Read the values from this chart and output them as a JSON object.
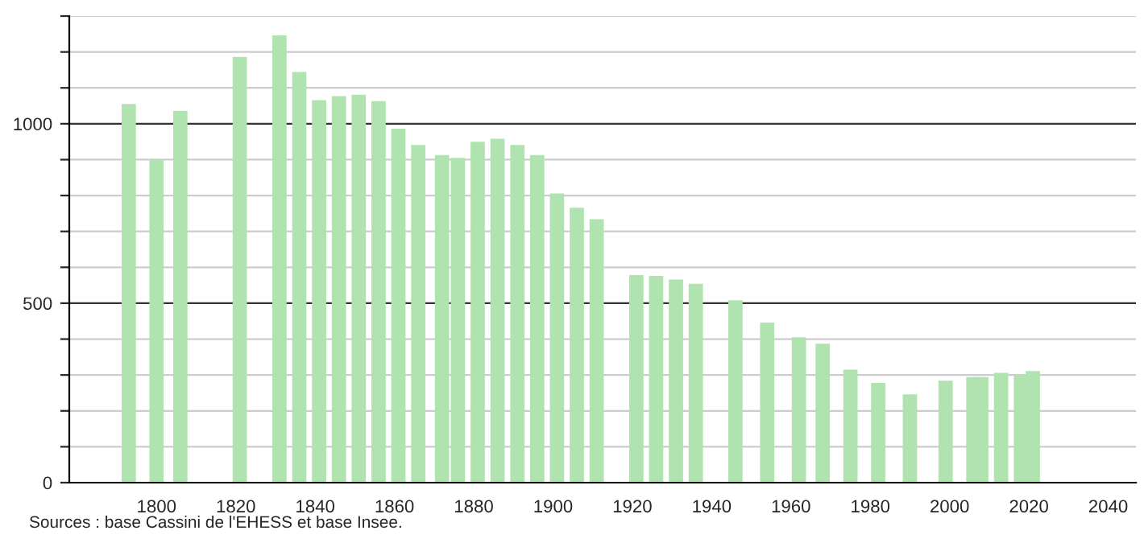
{
  "chart_data": {
    "type": "bar",
    "x": [
      1793,
      1800,
      1806,
      1821,
      1831,
      1836,
      1841,
      1846,
      1851,
      1856,
      1861,
      1866,
      1872,
      1876,
      1881,
      1886,
      1891,
      1896,
      1901,
      1906,
      1911,
      1921,
      1926,
      1931,
      1936,
      1946,
      1954,
      1962,
      1968,
      1975,
      1982,
      1990,
      1999,
      2006,
      2008,
      2013,
      2018,
      2021
    ],
    "values": [
      1055,
      900,
      1036,
      1186,
      1246,
      1144,
      1066,
      1077,
      1081,
      1063,
      986,
      941,
      913,
      905,
      950,
      958,
      941,
      913,
      806,
      766,
      734,
      578,
      576,
      566,
      554,
      508,
      446,
      405,
      387,
      315,
      278,
      246,
      284,
      294,
      294,
      306,
      302,
      311
    ],
    "color": "#b0e3b0",
    "xlim": [
      1778,
      2047
    ],
    "xticks": [
      1800,
      1820,
      1840,
      1860,
      1880,
      1900,
      1920,
      1940,
      1960,
      1980,
      2000,
      2020,
      2040
    ],
    "ylim": [
      0,
      1300
    ],
    "yticks": [
      0,
      {
        "value": 100,
        "label": null
      },
      {
        "value": 200,
        "label": null
      },
      {
        "value": 300,
        "label": null
      },
      {
        "value": 400,
        "label": null
      },
      500,
      {
        "value": 600,
        "label": null
      },
      {
        "value": 700,
        "label": null
      },
      {
        "value": 800,
        "label": null
      },
      {
        "value": 900,
        "label": null
      },
      1000,
      {
        "value": 1100,
        "label": null
      },
      {
        "value": 1200,
        "label": null
      },
      {
        "value": 1300,
        "label": null
      }
    ],
    "grid": "y",
    "annotations": [
      "Sources : base Cassini de l'EHESS et base Insee."
    ]
  }
}
